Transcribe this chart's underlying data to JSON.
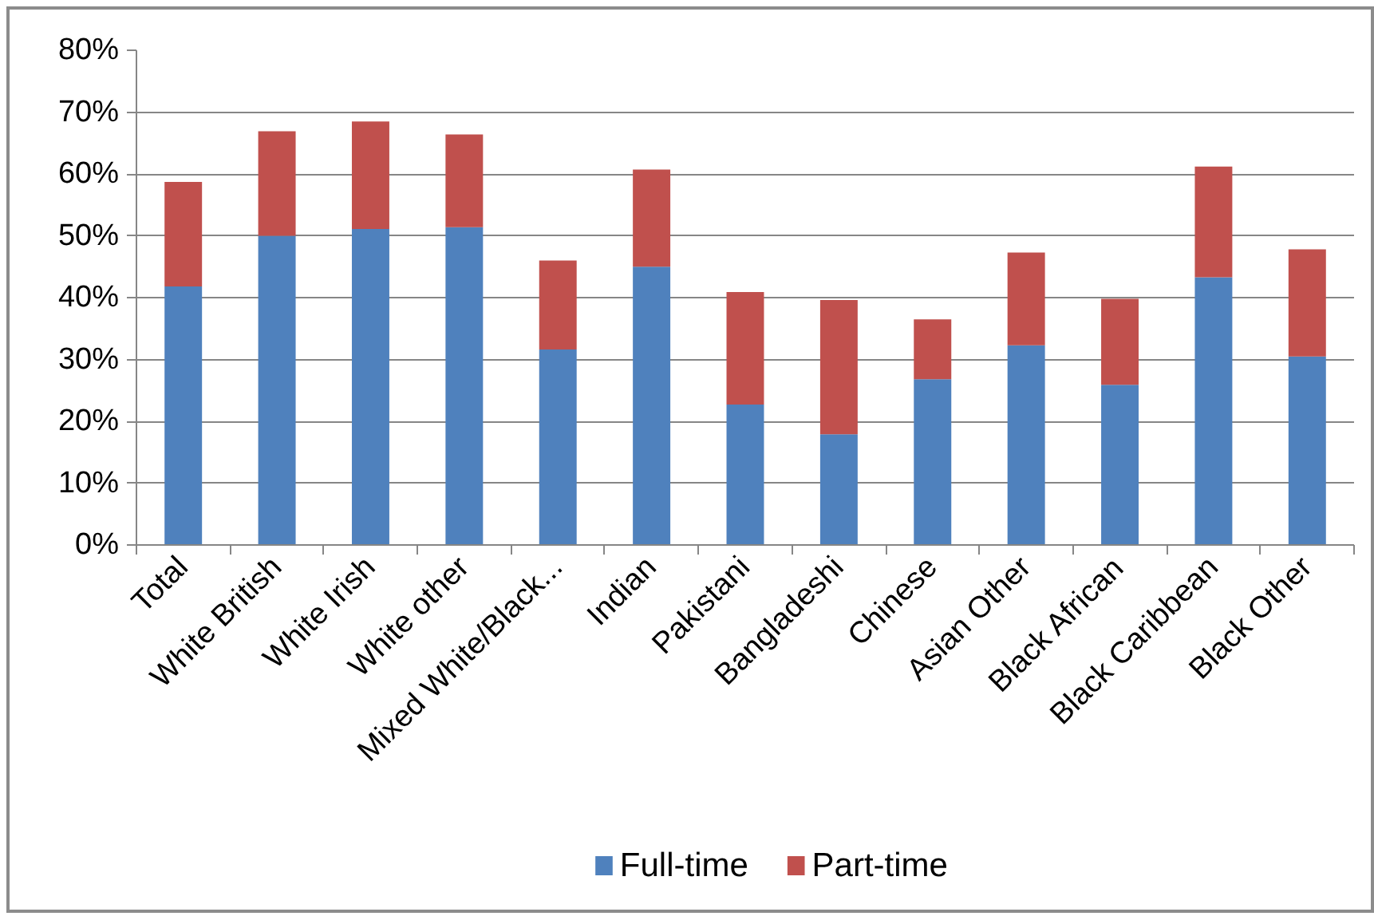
{
  "chart_data": {
    "type": "bar",
    "stacked": true,
    "categories": [
      "Total",
      "White British",
      "White Irish",
      "White other",
      "Mixed White/Black...",
      "Indian",
      "Pakistani",
      "Bangladeshi",
      "Chinese",
      "Asian Other",
      "Black African",
      "Black Caribbean",
      "Black Other"
    ],
    "series": [
      {
        "name": "Full-time",
        "color": "#4f81bd",
        "values": [
          41.8,
          50.0,
          51.1,
          51.4,
          31.6,
          45.0,
          22.7,
          17.9,
          26.8,
          32.3,
          25.9,
          43.3,
          30.5
        ]
      },
      {
        "name": "Part-time",
        "color": "#c0504d",
        "values": [
          16.9,
          16.9,
          17.4,
          15.0,
          14.4,
          15.7,
          18.2,
          21.7,
          9.7,
          15.0,
          13.9,
          17.9,
          17.3
        ]
      }
    ],
    "ylim": [
      0,
      80
    ],
    "yticks": [
      {
        "value": 0,
        "label": "0%"
      },
      {
        "value": 10,
        "label": "10%"
      },
      {
        "value": 20,
        "label": "20%"
      },
      {
        "value": 30,
        "label": "30%"
      },
      {
        "value": 40,
        "label": "40%"
      },
      {
        "value": 50,
        "label": "50%"
      },
      {
        "value": 60,
        "label": "60%"
      },
      {
        "value": 70,
        "label": "70%"
      },
      {
        "value": 80,
        "label": "80%"
      }
    ],
    "grid": "y",
    "legend": "bottom"
  }
}
